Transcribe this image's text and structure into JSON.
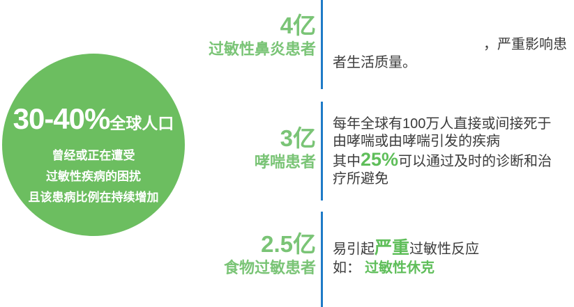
{
  "colors": {
    "circle_green": "#6CBE60",
    "stat_green": "#7AC476",
    "highlight_green": "#5FBE5A",
    "dark_text": "#3B3B3B",
    "divider_blue": "#1E7BC7",
    "background": "#FFFFFF"
  },
  "circle": {
    "headline_value": "30-40%",
    "headline_suffix": "全球人口",
    "lines": [
      "曾经或正在遭受",
      "过敏性疾病的困扰",
      "且该患病比例在持续增加"
    ]
  },
  "stats": [
    {
      "value": "4亿",
      "label": "过敏性鼻炎患者"
    },
    {
      "value": "3亿",
      "label": "哮喘患者"
    },
    {
      "value": "2.5亿",
      "label": "食物过敏患者"
    }
  ],
  "details": {
    "rhinitis": {
      "line1": "，严重影响患",
      "line2": "者生活质量。"
    },
    "asthma": {
      "line1": "每年全球有100万人直接或间接死于",
      "line2": "由哮喘或由哮喘引发的疾病",
      "line3_prefix": "其中",
      "line3_highlight": "25%",
      "line3_suffix": "可以通过及时的诊断和治",
      "line4": "疗所避免"
    },
    "food_allergy": {
      "line1_prefix": "易引起",
      "line1_highlight": "严重",
      "line1_suffix": "过敏性反应",
      "line2_prefix": "如：",
      "line2_highlight": "过敏性休克"
    }
  }
}
